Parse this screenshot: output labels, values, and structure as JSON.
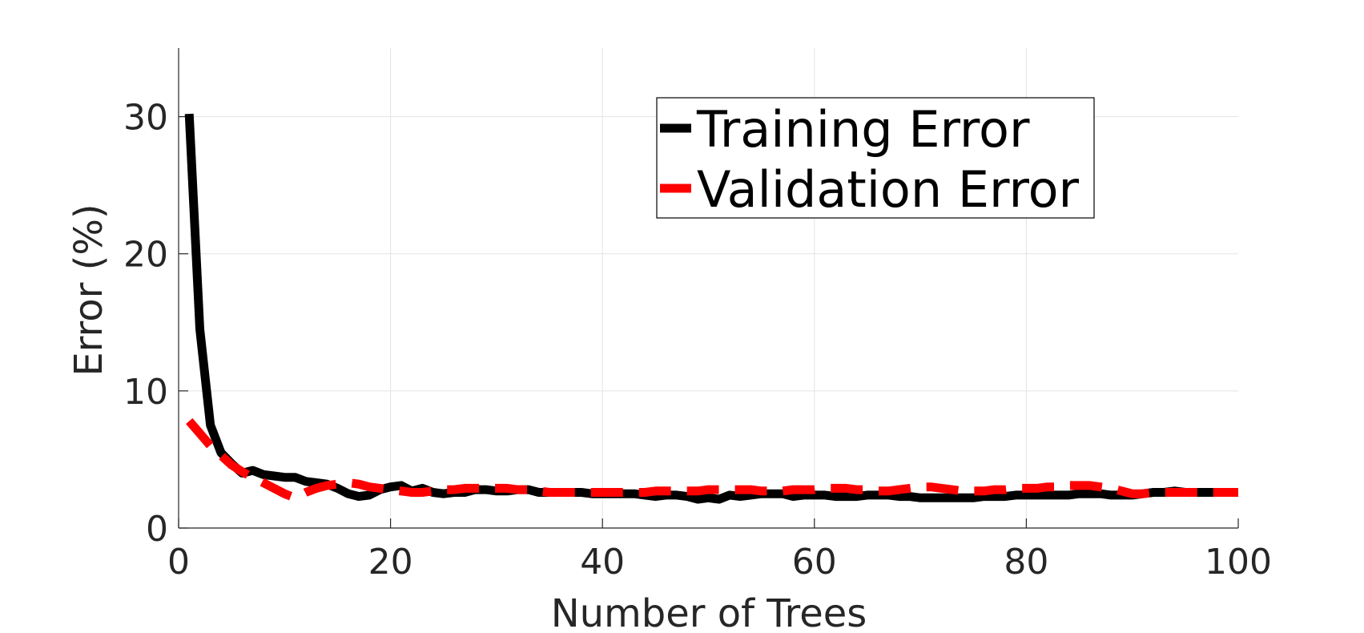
{
  "chart_data": {
    "type": "line",
    "title": "",
    "xlabel": "Number of Trees",
    "ylabel": "Error (%)",
    "xlim": [
      0,
      100
    ],
    "ylim": [
      0,
      35
    ],
    "xticks": [
      0,
      20,
      40,
      60,
      80,
      100
    ],
    "yticks": [
      0,
      10,
      20,
      30
    ],
    "grid": true,
    "legend_position": "top-right",
    "series": [
      {
        "name": "Training Error",
        "color": "#000000",
        "style": "solid",
        "x": [
          1,
          2,
          3,
          4,
          5,
          6,
          7,
          8,
          9,
          10,
          11,
          12,
          13,
          14,
          15,
          16,
          17,
          18,
          19,
          20,
          21,
          22,
          23,
          24,
          25,
          26,
          27,
          28,
          29,
          30,
          31,
          32,
          33,
          34,
          35,
          36,
          37,
          38,
          39,
          40,
          41,
          42,
          43,
          44,
          45,
          46,
          47,
          48,
          49,
          50,
          51,
          52,
          53,
          54,
          55,
          56,
          57,
          58,
          59,
          60,
          61,
          62,
          63,
          64,
          65,
          66,
          67,
          68,
          69,
          70,
          71,
          72,
          73,
          74,
          75,
          76,
          77,
          78,
          79,
          80,
          81,
          82,
          83,
          84,
          85,
          86,
          87,
          88,
          89,
          90,
          91,
          92,
          93,
          94,
          95,
          96,
          97,
          98,
          99,
          100
        ],
        "y": [
          30.2,
          14.5,
          7.5,
          5.5,
          4.7,
          4.0,
          4.2,
          3.9,
          3.8,
          3.7,
          3.7,
          3.4,
          3.3,
          3.2,
          2.9,
          2.5,
          2.3,
          2.4,
          2.8,
          3.0,
          3.1,
          2.7,
          2.9,
          2.6,
          2.5,
          2.6,
          2.6,
          2.8,
          2.8,
          2.7,
          2.7,
          2.8,
          2.8,
          2.6,
          2.6,
          2.6,
          2.6,
          2.6,
          2.5,
          2.5,
          2.5,
          2.5,
          2.5,
          2.4,
          2.3,
          2.4,
          2.4,
          2.3,
          2.1,
          2.2,
          2.1,
          2.4,
          2.3,
          2.4,
          2.5,
          2.5,
          2.5,
          2.3,
          2.4,
          2.4,
          2.4,
          2.3,
          2.3,
          2.3,
          2.4,
          2.4,
          2.4,
          2.3,
          2.3,
          2.2,
          2.2,
          2.2,
          2.2,
          2.2,
          2.2,
          2.3,
          2.3,
          2.3,
          2.4,
          2.4,
          2.4,
          2.4,
          2.4,
          2.4,
          2.5,
          2.5,
          2.5,
          2.4,
          2.4,
          2.4,
          2.5,
          2.6,
          2.6,
          2.7,
          2.6,
          2.6,
          2.6,
          2.6,
          2.6,
          2.6
        ]
      },
      {
        "name": "Validation Error",
        "color": "#ff0000",
        "style": "dashed",
        "x": [
          1,
          2,
          3,
          4,
          5,
          6,
          7,
          8,
          9,
          10,
          11,
          12,
          13,
          14,
          15,
          16,
          17,
          18,
          19,
          20,
          21,
          22,
          23,
          24,
          25,
          26,
          27,
          28,
          29,
          30,
          31,
          32,
          33,
          34,
          35,
          36,
          37,
          38,
          39,
          40,
          41,
          42,
          43,
          44,
          45,
          46,
          47,
          48,
          49,
          50,
          51,
          52,
          53,
          54,
          55,
          56,
          57,
          58,
          59,
          60,
          61,
          62,
          63,
          64,
          65,
          66,
          67,
          68,
          69,
          70,
          71,
          72,
          73,
          74,
          75,
          76,
          77,
          78,
          79,
          80,
          81,
          82,
          83,
          84,
          85,
          86,
          87,
          88,
          89,
          90,
          91,
          92,
          93,
          94,
          95,
          96,
          97,
          98,
          99,
          100
        ],
        "y": [
          7.8,
          6.9,
          6.0,
          5.3,
          4.6,
          4.1,
          3.7,
          3.3,
          2.9,
          2.5,
          2.2,
          2.6,
          2.9,
          3.1,
          3.2,
          3.3,
          3.2,
          3.0,
          2.9,
          2.8,
          2.7,
          2.6,
          2.6,
          2.7,
          2.8,
          2.8,
          2.9,
          2.9,
          2.9,
          2.9,
          2.9,
          2.8,
          2.8,
          2.7,
          2.6,
          2.6,
          2.6,
          2.6,
          2.6,
          2.6,
          2.6,
          2.6,
          2.6,
          2.6,
          2.7,
          2.7,
          2.7,
          2.7,
          2.7,
          2.8,
          2.8,
          2.8,
          2.8,
          2.8,
          2.7,
          2.7,
          2.7,
          2.8,
          2.8,
          2.8,
          2.9,
          2.9,
          2.9,
          2.8,
          2.8,
          2.7,
          2.7,
          2.8,
          2.9,
          3.0,
          3.0,
          2.9,
          2.8,
          2.7,
          2.7,
          2.7,
          2.8,
          2.8,
          2.9,
          2.9,
          2.9,
          3.0,
          3.0,
          3.1,
          3.1,
          3.1,
          3.0,
          2.9,
          2.7,
          2.5,
          2.5,
          2.6,
          2.6,
          2.6,
          2.6,
          2.6,
          2.6,
          2.6,
          2.6,
          2.6
        ]
      }
    ]
  }
}
